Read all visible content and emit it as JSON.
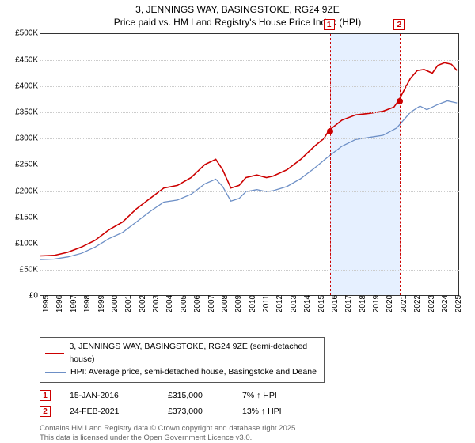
{
  "title_line1": "3, JENNINGS WAY, BASINGSTOKE, RG24 9ZE",
  "title_line2": "Price paid vs. HM Land Registry's House Price Index (HPI)",
  "chart": {
    "type": "line",
    "x_years": [
      1995,
      1996,
      1997,
      1998,
      1999,
      2000,
      2001,
      2002,
      2003,
      2004,
      2005,
      2006,
      2007,
      2008,
      2009,
      2010,
      2011,
      2012,
      2013,
      2014,
      2015,
      2016,
      2017,
      2018,
      2019,
      2020,
      2021,
      2022,
      2023,
      2024,
      2025
    ],
    "x_min": 1995,
    "x_max": 2025.5,
    "y_min": 0,
    "y_max": 500000,
    "y_step": 50000,
    "y_ticks": [
      "£0",
      "£50K",
      "£100K",
      "£150K",
      "£200K",
      "£250K",
      "£300K",
      "£350K",
      "£400K",
      "£450K",
      "£500K"
    ],
    "grid_color": "#cccccc",
    "background_color": "#ffffff",
    "band1": {
      "start": 2016.04,
      "end": 2021.15,
      "color": "#e6f0ff"
    },
    "band2": {
      "start": 2021.15,
      "end": 2021.55,
      "color": "#e6f0ff"
    },
    "series": {
      "price_paid": {
        "color": "#cc0000",
        "width": 1.6,
        "label": "3, JENNINGS WAY, BASINGSTOKE, RG24 9ZE (semi-detached house)",
        "data": [
          [
            1995,
            75000
          ],
          [
            1996,
            76000
          ],
          [
            1997,
            82000
          ],
          [
            1998,
            92000
          ],
          [
            1999,
            105000
          ],
          [
            2000,
            125000
          ],
          [
            2001,
            140000
          ],
          [
            2002,
            165000
          ],
          [
            2003,
            185000
          ],
          [
            2004,
            205000
          ],
          [
            2005,
            210000
          ],
          [
            2006,
            225000
          ],
          [
            2007,
            250000
          ],
          [
            2007.8,
            260000
          ],
          [
            2008.3,
            240000
          ],
          [
            2008.9,
            205000
          ],
          [
            2009.5,
            210000
          ],
          [
            2010,
            225000
          ],
          [
            2010.8,
            230000
          ],
          [
            2011.5,
            225000
          ],
          [
            2012,
            228000
          ],
          [
            2013,
            240000
          ],
          [
            2014,
            260000
          ],
          [
            2015,
            285000
          ],
          [
            2015.7,
            300000
          ],
          [
            2016.04,
            315000
          ],
          [
            2017,
            335000
          ],
          [
            2018,
            345000
          ],
          [
            2019,
            348000
          ],
          [
            2020,
            352000
          ],
          [
            2020.8,
            360000
          ],
          [
            2021.15,
            373000
          ],
          [
            2022,
            415000
          ],
          [
            2022.5,
            430000
          ],
          [
            2023,
            432000
          ],
          [
            2023.6,
            425000
          ],
          [
            2024,
            440000
          ],
          [
            2024.5,
            445000
          ],
          [
            2025,
            442000
          ],
          [
            2025.4,
            430000
          ]
        ]
      },
      "hpi": {
        "color": "#6d8fc6",
        "width": 1.3,
        "label": "HPI: Average price, semi-detached house, Basingstoke and Deane",
        "data": [
          [
            1995,
            68000
          ],
          [
            1996,
            69000
          ],
          [
            1997,
            73000
          ],
          [
            1998,
            80000
          ],
          [
            1999,
            92000
          ],
          [
            2000,
            108000
          ],
          [
            2001,
            120000
          ],
          [
            2002,
            140000
          ],
          [
            2003,
            160000
          ],
          [
            2004,
            178000
          ],
          [
            2005,
            182000
          ],
          [
            2006,
            193000
          ],
          [
            2007,
            213000
          ],
          [
            2007.8,
            222000
          ],
          [
            2008.3,
            208000
          ],
          [
            2008.9,
            180000
          ],
          [
            2009.5,
            185000
          ],
          [
            2010,
            198000
          ],
          [
            2010.8,
            202000
          ],
          [
            2011.5,
            198000
          ],
          [
            2012,
            200000
          ],
          [
            2013,
            208000
          ],
          [
            2014,
            223000
          ],
          [
            2015,
            243000
          ],
          [
            2016,
            265000
          ],
          [
            2017,
            285000
          ],
          [
            2018,
            298000
          ],
          [
            2019,
            302000
          ],
          [
            2020,
            306000
          ],
          [
            2021,
            320000
          ],
          [
            2022,
            350000
          ],
          [
            2022.7,
            362000
          ],
          [
            2023.2,
            355000
          ],
          [
            2024,
            365000
          ],
          [
            2024.7,
            372000
          ],
          [
            2025.4,
            368000
          ]
        ]
      }
    },
    "markers": [
      {
        "n": "1",
        "x": 2016.04,
        "y": 315000,
        "date": "15-JAN-2016",
        "price": "£315,000",
        "pct": "7% ↑ HPI"
      },
      {
        "n": "2",
        "x": 2021.15,
        "y": 373000,
        "date": "24-FEB-2021",
        "price": "£373,000",
        "pct": "13% ↑ HPI"
      }
    ]
  },
  "legend": {
    "row1_color": "#cc0000",
    "row2_color": "#6d8fc6"
  },
  "footer_line1": "Contains HM Land Registry data © Crown copyright and database right 2025.",
  "footer_line2": "This data is licensed under the Open Government Licence v3.0."
}
